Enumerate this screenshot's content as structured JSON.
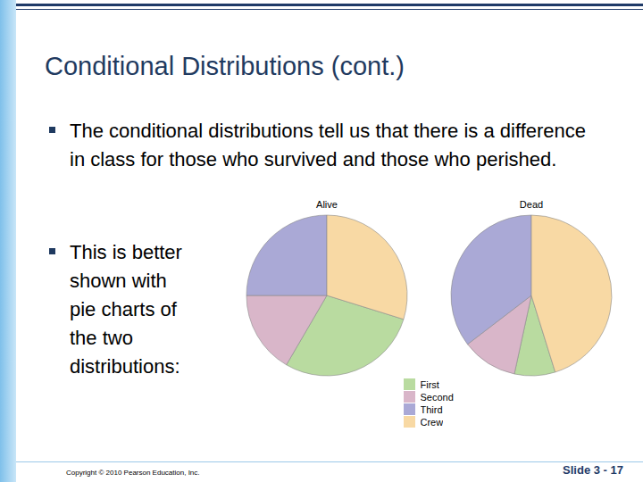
{
  "slide": {
    "title": "Conditional Distributions (cont.)",
    "bullets": [
      "The conditional distributions tell us that there is a difference in class for those who survived and those who perished.",
      "This is better shown with pie charts of the two distributions:"
    ],
    "footer": "Copyright © 2010 Pearson Education, Inc.",
    "slide_number": "Slide 3 - 17"
  },
  "chart_data": [
    {
      "type": "pie",
      "title": "Alive",
      "categories": [
        "First",
        "Second",
        "Third",
        "Crew"
      ],
      "values": [
        28.6,
        16.6,
        25.0,
        29.8
      ],
      "colors": [
        "#b9dba0",
        "#d9b6c9",
        "#aaa9d6",
        "#f8d9a4"
      ],
      "legend": "bottom"
    },
    {
      "type": "pie",
      "title": "Dead",
      "categories": [
        "First",
        "Second",
        "Third",
        "Crew"
      ],
      "values": [
        8.2,
        11.2,
        35.4,
        45.2
      ],
      "colors": [
        "#b9dba0",
        "#d9b6c9",
        "#aaa9d6",
        "#f8d9a4"
      ],
      "legend": "bottom"
    }
  ]
}
